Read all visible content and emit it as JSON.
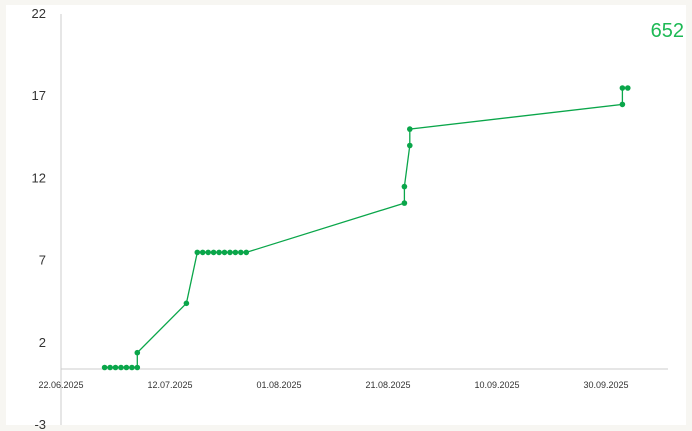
{
  "total": "652",
  "colors": {
    "series": "#0aa64a",
    "axis": "#cccccc",
    "text": "#333333",
    "total": "#1db954"
  },
  "chart_data": {
    "type": "line",
    "title": "",
    "xlabel": "",
    "ylabel": "",
    "grid": false,
    "legend": "none",
    "x_axis_type": "date",
    "xlim": [
      "2025-06-22",
      "2025-10-09"
    ],
    "ylim": [
      -3,
      22
    ],
    "x_ticks": [
      "22.06.2025",
      "12.07.2025",
      "01.08.2025",
      "21.08.2025",
      "10.09.2025",
      "30.09.2025"
    ],
    "y_ticks": [
      "-3",
      "2",
      "7",
      "12",
      "17",
      "22"
    ],
    "series": [
      {
        "color": "#0aa64a",
        "points": [
          {
            "x": "2025-06-30",
            "y": 0.5
          },
          {
            "x": "2025-07-01",
            "y": 0.5
          },
          {
            "x": "2025-07-02",
            "y": 0.5
          },
          {
            "x": "2025-07-03",
            "y": 0.5
          },
          {
            "x": "2025-07-04",
            "y": 0.5
          },
          {
            "x": "2025-07-05",
            "y": 0.5
          },
          {
            "x": "2025-07-06",
            "y": 0.5
          },
          {
            "x": "2025-07-06",
            "y": 1.4
          },
          {
            "x": "2025-07-15",
            "y": 4.4
          },
          {
            "x": "2025-07-17",
            "y": 7.5
          },
          {
            "x": "2025-07-18",
            "y": 7.5
          },
          {
            "x": "2025-07-19",
            "y": 7.5
          },
          {
            "x": "2025-07-20",
            "y": 7.5
          },
          {
            "x": "2025-07-21",
            "y": 7.5
          },
          {
            "x": "2025-07-22",
            "y": 7.5
          },
          {
            "x": "2025-07-23",
            "y": 7.5
          },
          {
            "x": "2025-07-24",
            "y": 7.5
          },
          {
            "x": "2025-07-25",
            "y": 7.5
          },
          {
            "x": "2025-07-26",
            "y": 7.5
          },
          {
            "x": "2025-08-24",
            "y": 10.5
          },
          {
            "x": "2025-08-24",
            "y": 11.5
          },
          {
            "x": "2025-08-25",
            "y": 14.0
          },
          {
            "x": "2025-08-25",
            "y": 15.0
          },
          {
            "x": "2025-10-03",
            "y": 16.5
          },
          {
            "x": "2025-10-03",
            "y": 17.5
          },
          {
            "x": "2025-10-04",
            "y": 17.5
          }
        ]
      }
    ]
  }
}
